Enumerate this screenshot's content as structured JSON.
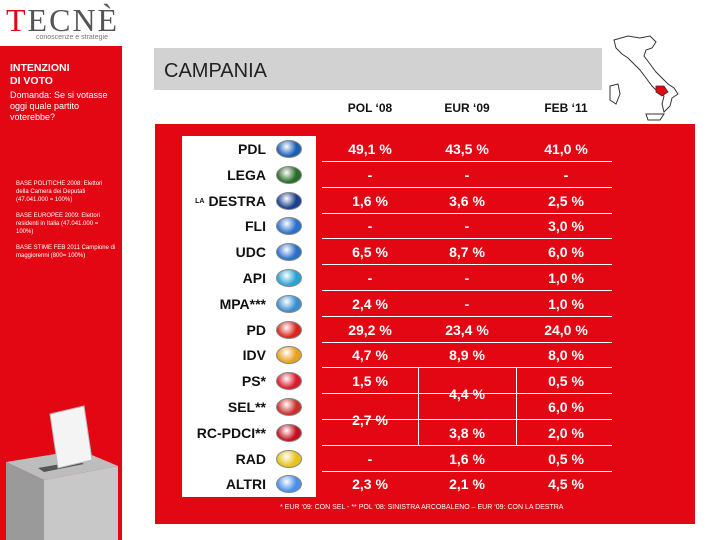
{
  "logo": {
    "main_rest": "ECNÈ",
    "main_t": "T",
    "tagline": "conoscenze e strategie"
  },
  "sidebar": {
    "title_line1": "INTENZIONI",
    "title_line2": "DI VOTO",
    "question": "Domanda: Se si votasse oggi quale partito voterebbe?",
    "bases": [
      "BASE POLITICHE 2008: Elettori della Camera dei Deputati (47.041.000 = 100%)",
      "BASE EUROPEE 2009: Elettori residenti in Italia (47.041.000 = 100%)",
      "BASE STIME FEB 2011 Campione di maggiorenni (800= 100%)"
    ]
  },
  "header": {
    "title": "CAMPANIA"
  },
  "columns": [
    "POL ‘08",
    "EUR ‘09",
    "FEB ‘11"
  ],
  "rows": [
    {
      "party": "PDL",
      "prefix": "",
      "pol08": "49,1 %",
      "eur09": "43,5 %",
      "feb11": "41,0 %",
      "logo_color": "#1b5fb4"
    },
    {
      "party": "LEGA",
      "prefix": "",
      "pol08": "-",
      "eur09": "-",
      "feb11": "-",
      "logo_color": "#2a6c2a"
    },
    {
      "party": "DESTRA",
      "prefix": "LA",
      "pol08": "1,6 %",
      "eur09": "3,6 %",
      "feb11": "2,5 %",
      "logo_color": "#1a3f8c"
    },
    {
      "party": "FLI",
      "prefix": "",
      "pol08": "-",
      "eur09": "-",
      "feb11": "3,0 %",
      "logo_color": "#2c6fc9"
    },
    {
      "party": "UDC",
      "prefix": "",
      "pol08": "6,5 %",
      "eur09": "8,7 %",
      "feb11": "6,0 %",
      "logo_color": "#2c6fc9"
    },
    {
      "party": "API",
      "prefix": "",
      "pol08": "-",
      "eur09": "-",
      "feb11": "1,0 %",
      "logo_color": "#2aa1d6"
    },
    {
      "party": "MPA***",
      "prefix": "",
      "pol08": "2,4 %",
      "eur09": "-",
      "feb11": "1,0 %",
      "logo_color": "#3a8fd0"
    },
    {
      "party": "PD",
      "prefix": "",
      "pol08": "29,2 %",
      "eur09": "23,4 %",
      "feb11": "24,0 %",
      "logo_color": "#d9261c"
    },
    {
      "party": "IDV",
      "prefix": "",
      "pol08": "4,7 %",
      "eur09": "8,9 %",
      "feb11": "8,0 %",
      "logo_color": "#e8a01f"
    },
    {
      "party": "PS*",
      "prefix": "",
      "pol08": "1,5 %",
      "eur09": "",
      "feb11": "0,5 %",
      "logo_color": "#d81c2b"
    },
    {
      "party": "SEL**",
      "prefix": "",
      "pol08": "",
      "eur09": "",
      "feb11": "6,0 %",
      "logo_color": "#c9302c"
    },
    {
      "party": "RC-PDCI**",
      "prefix": "",
      "pol08": "",
      "eur09": "3,8 %",
      "feb11": "2,0 %",
      "logo_color": "#c1121f"
    },
    {
      "party": "RAD",
      "prefix": "",
      "pol08": "-",
      "eur09": "1,6 %",
      "feb11": "0,5 %",
      "logo_color": "#e6c21a"
    },
    {
      "party": "ALTRI",
      "prefix": "",
      "pol08": "2,3 %",
      "eur09": "2,1 %",
      "feb11": "4,5 %",
      "logo_color": "#4b8ee8"
    }
  ],
  "merged": {
    "pol08_sel_rc": "2,7 %",
    "eur09_ps_sel": "4,4 %"
  },
  "footnote": "* EUR ‘09: CON SEL - ** POL ‘08: SINISTRA ARCOBALENO – EUR ‘09: CON LA DESTRA"
}
